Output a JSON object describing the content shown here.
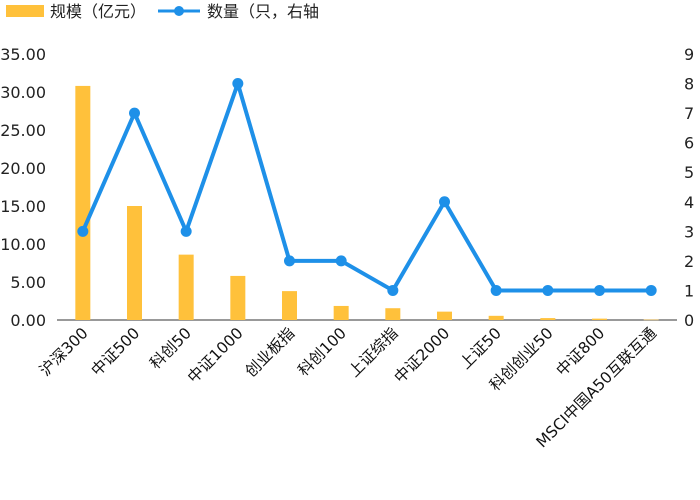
{
  "chart_data": {
    "type": "bar+line",
    "categories": [
      "沪深300",
      "中证500",
      "科创50",
      "中证1000",
      "创业板指",
      "科创100",
      "上证综指",
      "中证2000",
      "上证50",
      "科创创业50",
      "中证800",
      "MSCI中国A50互联互通"
    ],
    "series": [
      {
        "name": "规模（亿元）",
        "type": "bar",
        "axis": "left",
        "color": "#FFC13B",
        "values": [
          30.8,
          15.0,
          8.6,
          5.8,
          3.8,
          1.85,
          1.55,
          1.1,
          0.55,
          0.25,
          0.18,
          0.05
        ]
      },
      {
        "name": "数量（只，右轴",
        "type": "line",
        "axis": "right",
        "color": "#1E90E8",
        "values": [
          3,
          7,
          3,
          8,
          2,
          2,
          1,
          4,
          1,
          1,
          1,
          1
        ]
      }
    ],
    "yleft": {
      "ylim": [
        0,
        35
      ],
      "ticks": [
        "0.00",
        "5.00",
        "10.00",
        "15.00",
        "20.00",
        "25.00",
        "30.00",
        "35.00"
      ]
    },
    "yright": {
      "ylim": [
        0,
        9
      ],
      "ticks": [
        "0",
        "1",
        "2",
        "3",
        "4",
        "5",
        "6",
        "7",
        "8",
        "9"
      ]
    },
    "legend_position": "top-left",
    "grid": false
  }
}
